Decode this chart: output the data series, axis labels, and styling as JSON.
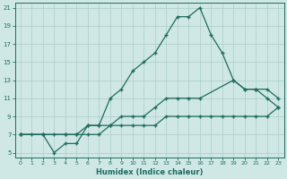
{
  "xlabel": "Humidex (Indice chaleur)",
  "bg_color": "#cfe8e5",
  "line_color": "#1e6b5e",
  "grid_color": "#aaccc8",
  "xlim": [
    -0.5,
    23.5
  ],
  "ylim": [
    4.5,
    21.5
  ],
  "xticks": [
    0,
    1,
    2,
    3,
    4,
    5,
    6,
    7,
    8,
    9,
    10,
    11,
    12,
    13,
    14,
    15,
    16,
    17,
    18,
    19,
    20,
    21,
    22,
    23
  ],
  "yticks": [
    5,
    7,
    9,
    11,
    13,
    15,
    17,
    19,
    21
  ],
  "line1_x": [
    0,
    1,
    2,
    3,
    4,
    5,
    6,
    7,
    8,
    9,
    10,
    11,
    12,
    13,
    14,
    15,
    16,
    17,
    18,
    19,
    20,
    21,
    22,
    23
  ],
  "line1_y": [
    7,
    7,
    7,
    5,
    6,
    6,
    8,
    8,
    11,
    12,
    14,
    15,
    16,
    18,
    20,
    20,
    21,
    18,
    16,
    13,
    12,
    12,
    11,
    10
  ],
  "line2_x": [
    0,
    2,
    3,
    4,
    5,
    6,
    7,
    8,
    9,
    10,
    11,
    12,
    13,
    14,
    15,
    16,
    19,
    20,
    21,
    22,
    23
  ],
  "line2_y": [
    7,
    7,
    7,
    7,
    7,
    8,
    8,
    8,
    9,
    9,
    9,
    10,
    11,
    11,
    11,
    11,
    13,
    12,
    12,
    12,
    11
  ],
  "line3_x": [
    0,
    2,
    4,
    5,
    6,
    7,
    8,
    9,
    10,
    11,
    12,
    13,
    14,
    15,
    16,
    17,
    18,
    19,
    20,
    21,
    22,
    23
  ],
  "line3_y": [
    7,
    7,
    7,
    7,
    7,
    7,
    8,
    8,
    8,
    8,
    8,
    9,
    9,
    9,
    9,
    9,
    9,
    9,
    9,
    9,
    9,
    10
  ]
}
